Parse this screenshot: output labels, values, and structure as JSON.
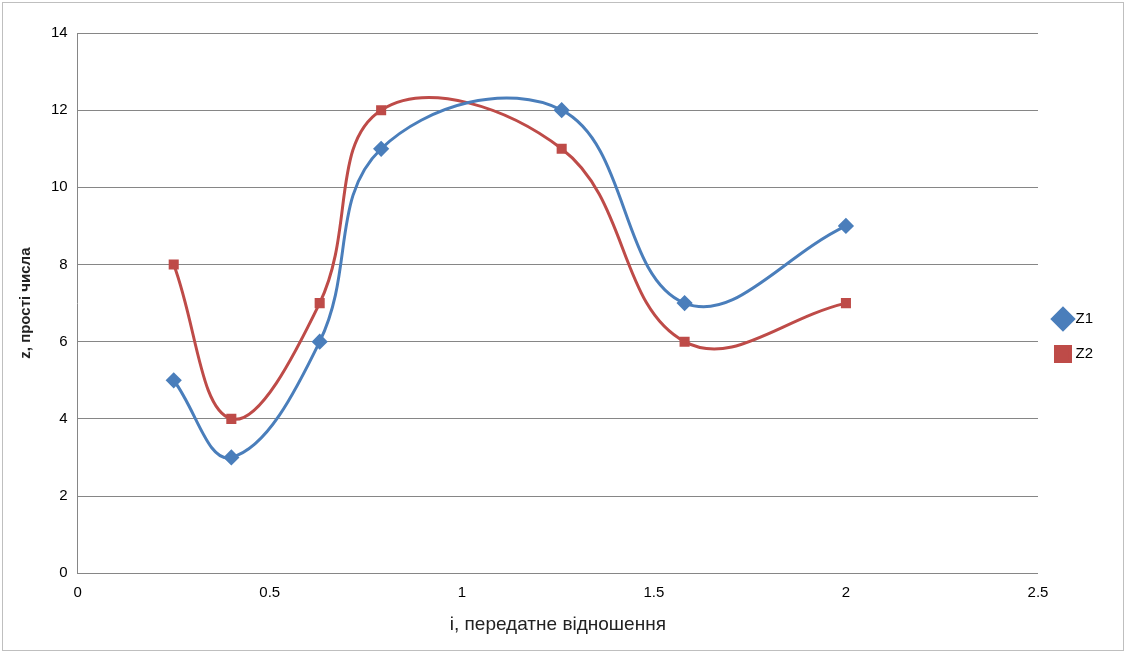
{
  "chart_data": {
    "type": "line",
    "x_label": "і, передатне відношення",
    "y_label": "z, прості числа",
    "x": [
      0.25,
      0.4,
      0.63,
      0.79,
      1.26,
      1.58,
      2.0
    ],
    "series": [
      {
        "name": "Z1",
        "color": "#4a7ebb",
        "marker": "diamond",
        "line_style": "solid",
        "values": [
          5,
          3,
          6,
          11,
          12,
          7,
          9
        ]
      },
      {
        "name": "Z2",
        "color": "#be4b48",
        "marker": "square",
        "line_style": "solid",
        "values": [
          8,
          4,
          7,
          12,
          11,
          6,
          7
        ]
      }
    ],
    "xlim": [
      0,
      2.5
    ],
    "xticks": [
      0,
      0.5,
      1,
      1.5,
      2,
      2.5
    ],
    "ylim": [
      0,
      14
    ],
    "yticks": [
      0,
      2,
      4,
      6,
      8,
      10,
      12,
      14
    ],
    "grid": "y",
    "legend": "right"
  }
}
